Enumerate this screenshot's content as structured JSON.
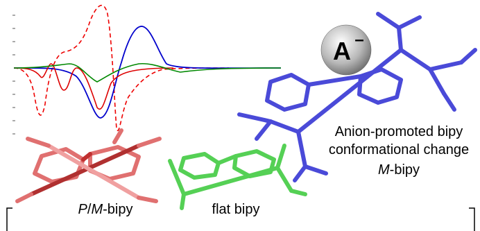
{
  "anion": {
    "symbol": "A",
    "charge": "–"
  },
  "caption": {
    "line1": "Anion-promoted bipy",
    "line2": "conformational change",
    "line3": {
      "italic": "M",
      "rest": "-bipy"
    }
  },
  "labels": {
    "pm_bipy": {
      "p": "P",
      "slash": "/",
      "m": "M",
      "rest": "-bipy"
    },
    "flat_bipy": "flat bipy"
  }
}
